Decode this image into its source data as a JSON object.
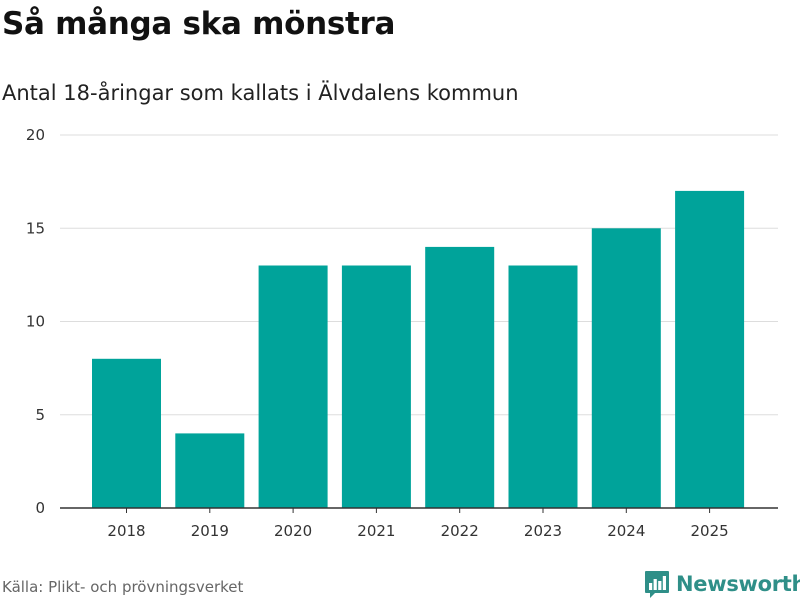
{
  "header": {
    "title": "Så många ska mönstra",
    "subtitle": "Antal 18-åringar som kallats i Älvdalens kommun"
  },
  "footer": {
    "source": "Källa: Plikt- och prövningsverket",
    "brand": "Newsworthy"
  },
  "colors": {
    "bar": "#00a39a",
    "brand": "#2f8f88",
    "grid": "#dddddd",
    "axis": "#333333"
  },
  "chart_data": {
    "type": "bar",
    "title": "Så många ska mönstra",
    "subtitle": "Antal 18-åringar som kallats i Älvdalens kommun",
    "xlabel": "",
    "ylabel": "",
    "categories": [
      "2018",
      "2019",
      "2020",
      "2021",
      "2022",
      "2023",
      "2024",
      "2025"
    ],
    "values": [
      8,
      4,
      13,
      13,
      14,
      13,
      15,
      17
    ],
    "ylim": [
      0,
      20
    ],
    "yticks": [
      0,
      5,
      10,
      15,
      20
    ],
    "grid": true,
    "legend": "none"
  }
}
